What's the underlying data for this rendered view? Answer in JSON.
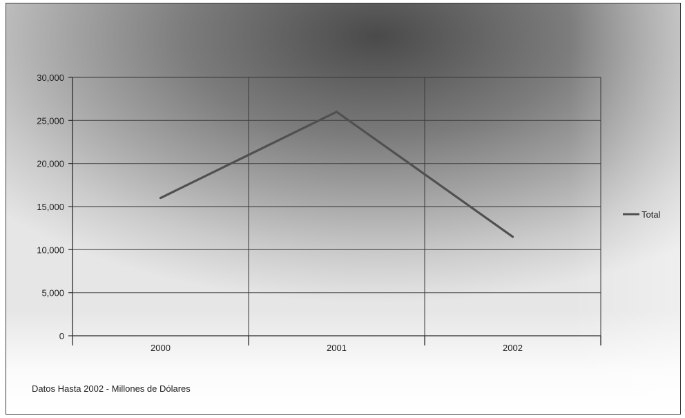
{
  "footnote": "Datos Hasta 2002 - Millones de Dólares",
  "colors": {
    "series_line": "#505050",
    "axis": "#2a2a2a",
    "grid": "#3c3c3c"
  },
  "chart_data": {
    "type": "line",
    "title": "",
    "xlabel": "",
    "ylabel": "",
    "categories": [
      "2000",
      "2001",
      "2002"
    ],
    "series": [
      {
        "name": "Total",
        "values": [
          16000,
          26000,
          11500
        ]
      }
    ],
    "ylim": [
      0,
      30000
    ],
    "yticks": [
      0,
      5000,
      10000,
      15000,
      20000,
      25000,
      30000
    ],
    "ytick_labels": [
      "0",
      "5,000",
      "10,000",
      "15,000",
      "20,000",
      "25,000",
      "30,000"
    ],
    "grid": true,
    "legend_position": "right"
  }
}
